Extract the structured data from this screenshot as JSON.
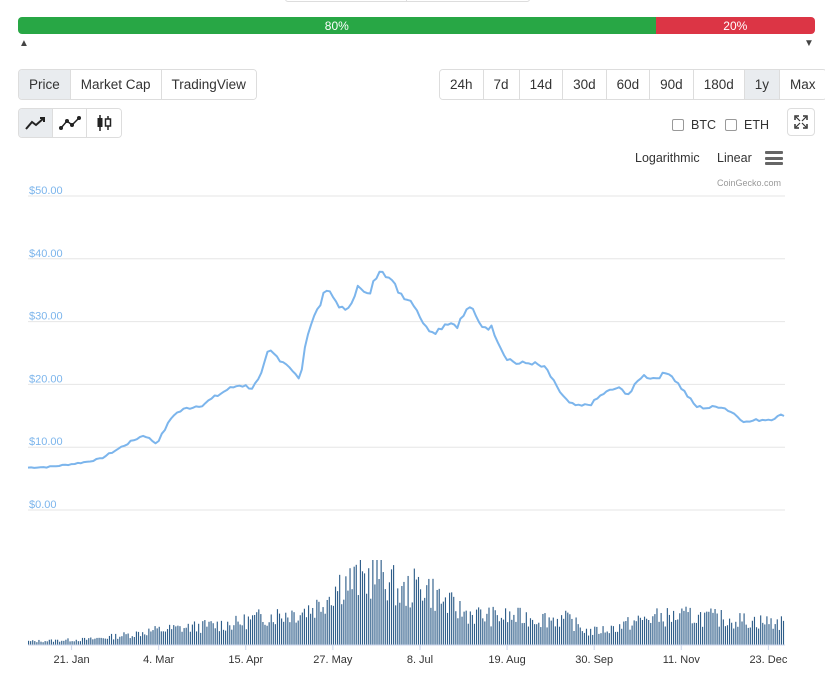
{
  "sentiment": {
    "up_label": "80%",
    "down_label": "20%",
    "up_value": 80,
    "down_value": 20,
    "up_color": "#28a745",
    "down_color": "#dc3545"
  },
  "tabs": [
    "Price",
    "Market Cap",
    "TradingView"
  ],
  "active_tab": "Price",
  "ranges": [
    "24h",
    "7d",
    "14d",
    "30d",
    "60d",
    "90d",
    "180d",
    "1y",
    "Max"
  ],
  "active_range": "1y",
  "chart_types": [
    {
      "icon": "line-chart-icon",
      "active": true
    },
    {
      "icon": "line-points-chart-icon",
      "active": false
    },
    {
      "icon": "candlestick-chart-icon",
      "active": false
    }
  ],
  "compare": {
    "btc_label": "BTC",
    "eth_label": "ETH"
  },
  "scale": {
    "log_label": "Logarithmic",
    "linear_label": "Linear"
  },
  "credit": "CoinGecko.com",
  "chart_data": {
    "type": "line",
    "title": "",
    "xlabel": "",
    "ylabel": "",
    "line_color": "#7cb5ec",
    "volume_color": "#2f5e8a",
    "grid": true,
    "ylim": [
      0,
      50
    ],
    "yticks": [
      "$0.00",
      "$10.00",
      "$20.00",
      "$30.00",
      "$40.00",
      "$50.00"
    ],
    "ytick_values": [
      0,
      10,
      20,
      30,
      40,
      50
    ],
    "xticks": [
      {
        "label": "21. Jan",
        "day": 21
      },
      {
        "label": "4. Mar",
        "day": 63
      },
      {
        "label": "15. Apr",
        "day": 105
      },
      {
        "label": "27. May",
        "day": 147
      },
      {
        "label": "8. Jul",
        "day": 189
      },
      {
        "label": "19. Aug",
        "day": 231
      },
      {
        "label": "30. Sep",
        "day": 273
      },
      {
        "label": "11. Nov",
        "day": 315
      },
      {
        "label": "23. Dec",
        "day": 357
      }
    ],
    "price_series": {
      "name": "Price",
      "x_days": [
        0,
        10,
        20,
        28,
        35,
        42,
        50,
        56,
        62,
        70,
        76,
        84,
        90,
        96,
        102,
        108,
        112,
        116,
        121,
        126,
        131,
        135,
        140,
        144,
        148,
        153,
        159,
        164,
        170,
        176,
        180,
        186,
        192,
        197,
        202,
        207,
        213,
        218,
        224,
        230,
        236,
        243,
        250,
        255,
        261,
        266,
        272,
        277,
        284,
        290,
        296,
        302,
        309,
        315,
        322,
        328,
        334,
        340,
        346,
        352,
        358,
        365
      ],
      "values": [
        5.8,
        5.9,
        6.3,
        6.7,
        7.2,
        8.5,
        10.0,
        11.0,
        9.6,
        14.2,
        15.2,
        15.8,
        17.0,
        18.2,
        19.0,
        18.5,
        20.0,
        24.5,
        23.2,
        22.0,
        19.6,
        27.5,
        31.5,
        34.0,
        32.5,
        30.5,
        34.5,
        33.0,
        38.0,
        35.0,
        33.5,
        32.0,
        28.0,
        27.5,
        29.0,
        28.5,
        31.5,
        28.5,
        28.0,
        23.5,
        22.3,
        22.5,
        21.5,
        18.5,
        16.0,
        15.5,
        16.0,
        17.5,
        18.5,
        17.5,
        20.5,
        20.0,
        21.0,
        18.5,
        15.5,
        15.3,
        15.6,
        14.5,
        13.0,
        13.4,
        13.5,
        14.3
      ]
    },
    "volume_series": {
      "name": "Volume",
      "x_days": [
        0,
        30,
        50,
        60,
        80,
        100,
        115,
        130,
        140,
        150,
        160,
        170,
        180,
        190,
        200,
        210,
        220,
        240,
        260,
        270,
        280,
        300,
        320,
        340,
        365
      ],
      "values": [
        0.05,
        0.08,
        0.15,
        0.2,
        0.25,
        0.3,
        0.4,
        0.45,
        0.55,
        0.85,
        0.9,
        1.0,
        0.7,
        0.85,
        0.6,
        0.45,
        0.4,
        0.38,
        0.35,
        0.18,
        0.22,
        0.38,
        0.4,
        0.35,
        0.3
      ]
    }
  }
}
